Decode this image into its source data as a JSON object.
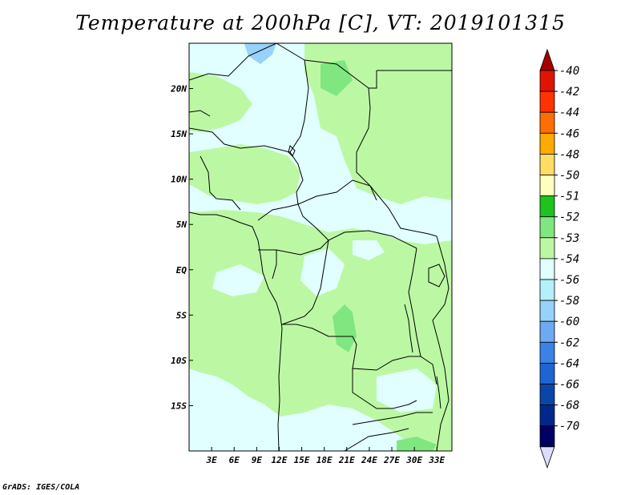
{
  "title": "Temperature at 200hPa [C], VT: 2019101315",
  "credit": "GrADS: IGES/COLA",
  "map": {
    "lon_range": [
      0,
      35
    ],
    "lat_range": [
      -20,
      25
    ],
    "lat_ticks": [
      {
        "value": 20,
        "label": "20N"
      },
      {
        "value": 15,
        "label": "15N"
      },
      {
        "value": 10,
        "label": "10N"
      },
      {
        "value": 5,
        "label": "5N"
      },
      {
        "value": 0,
        "label": "EQ"
      },
      {
        "value": -5,
        "label": "5S"
      },
      {
        "value": -10,
        "label": "10S"
      },
      {
        "value": -15,
        "label": "15S"
      }
    ],
    "lon_ticks": [
      {
        "value": 3,
        "label": "3E"
      },
      {
        "value": 6,
        "label": "6E"
      },
      {
        "value": 9,
        "label": "9E"
      },
      {
        "value": 12,
        "label": "12E"
      },
      {
        "value": 15,
        "label": "15E"
      },
      {
        "value": 18,
        "label": "18E"
      },
      {
        "value": 21,
        "label": "21E"
      },
      {
        "value": 24,
        "label": "24E"
      },
      {
        "value": 27,
        "label": "27E"
      },
      {
        "value": 30,
        "label": "30E"
      },
      {
        "value": 33,
        "label": "33E"
      }
    ],
    "background_color": "#e0fffe",
    "lines_color": "#000000"
  },
  "colorbar": {
    "labels": [
      "-40",
      "-42",
      "-44",
      "-46",
      "-48",
      "-50",
      "-51",
      "-52",
      "-53",
      "-54",
      "-56",
      "-58",
      "-60",
      "-62",
      "-64",
      "-66",
      "-68",
      "-70"
    ],
    "colors": [
      "#a50000",
      "#e11400",
      "#ff3200",
      "#ff6e00",
      "#ffaa00",
      "#ffdc64",
      "#ffffbe",
      "#1ec31e",
      "#80e680",
      "#bcf8a4",
      "#e0fffe",
      "#b4f0fa",
      "#96d2fa",
      "#6eaaf0",
      "#3c82e6",
      "#1e64d2",
      "#0a46aa",
      "#00288c",
      "#000064",
      "#dcdcff"
    ]
  }
}
